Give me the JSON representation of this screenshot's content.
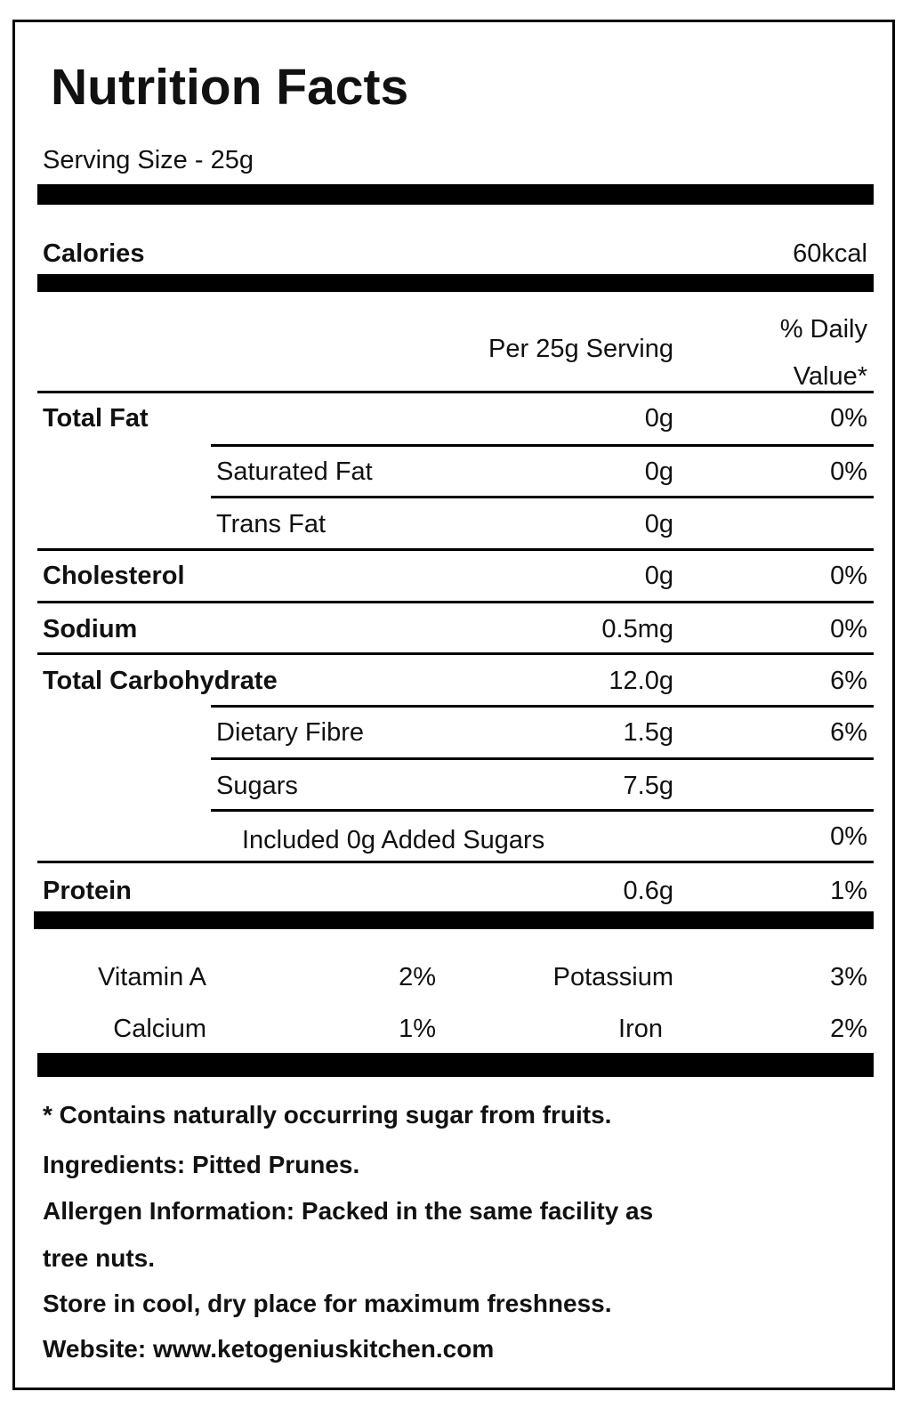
{
  "title": "Nutrition Facts",
  "serving_size": "Serving Size - 25g",
  "calories": {
    "label": "Calories",
    "value": "60kcal"
  },
  "columns": {
    "amount": "Per 25g Serving",
    "daily_value": [
      "% Daily",
      "Value*"
    ]
  },
  "nutrients": [
    {
      "label": "Total Fat",
      "amount": "0g",
      "daily_value": "0%"
    },
    {
      "label": "Saturated Fat",
      "amount": "0g",
      "daily_value": "0%"
    },
    {
      "label": "Trans Fat",
      "amount": "0g"
    },
    {
      "label": "Cholesterol",
      "amount": "0g",
      "daily_value": "0%"
    },
    {
      "label": "Sodium",
      "amount": "0.5mg",
      "daily_value": "0%"
    },
    {
      "label": "Total Carbohydrate",
      "amount": "12.0g",
      "daily_value": "6%"
    },
    {
      "label": "Dietary Fibre",
      "amount": "1.5g",
      "daily_value": "6%"
    },
    {
      "label": "Sugars",
      "amount": "7.5g"
    },
    {
      "label": "Included 0g Added Sugars",
      "daily_value": "0%"
    },
    {
      "label": "Protein",
      "amount": "0.6g",
      "daily_value": "1%"
    }
  ],
  "vitamins": [
    {
      "name": "Vitamin A",
      "value": "2%"
    },
    {
      "name": "Potassium",
      "value": "3%"
    },
    {
      "name": "Calcium",
      "value": "1%"
    },
    {
      "name": "Iron",
      "value": "2%"
    }
  ],
  "footnotes": [
    "* Contains naturally occurring sugar from fruits.",
    "Ingredients: Pitted Prunes.",
    "Allergen Information: Packed in the same facility as",
    "tree nuts.",
    "Store in cool, dry place for maximum freshness.",
    "Website: www.ketogeniuskitchen.com"
  ]
}
